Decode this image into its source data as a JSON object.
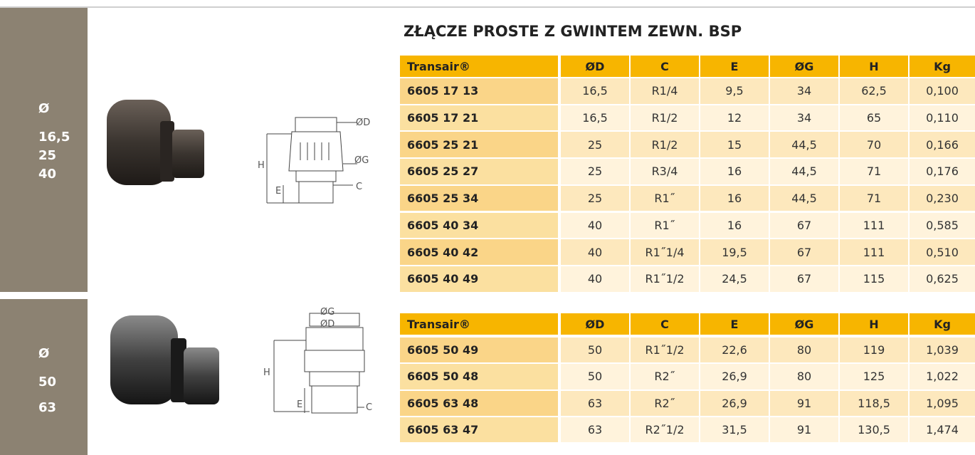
{
  "sidebar": [
    {
      "symbol": "Ø",
      "sizes": [
        "16,5",
        "25",
        "40"
      ]
    },
    {
      "symbol": "Ø",
      "sizes": [
        "50",
        "63"
      ]
    }
  ],
  "title": "ZŁĄCZE PROSTE Z GWINTEM ZEWN. BSP",
  "figures": [
    {
      "od": "ØD",
      "og": "ØG",
      "h": "H",
      "e": "E",
      "c": "C"
    },
    {
      "od": "ØD",
      "og": "ØG",
      "h": "H",
      "e": "E",
      "c": "C"
    }
  ],
  "tables": [
    {
      "header": [
        "Transair®",
        "ØD",
        "C",
        "E",
        "ØG",
        "H",
        "Kg"
      ],
      "rows": [
        [
          "6605 17 13",
          "16,5",
          "R1/4",
          "9,5",
          "34",
          "62,5",
          "0,100"
        ],
        [
          "6605 17 21",
          "16,5",
          "R1/2",
          "12",
          "34",
          "65",
          "0,110"
        ],
        [
          "6605 25 21",
          "25",
          "R1/2",
          "15",
          "44,5",
          "70",
          "0,166"
        ],
        [
          "6605 25 27",
          "25",
          "R3/4",
          "16",
          "44,5",
          "71",
          "0,176"
        ],
        [
          "6605 25 34",
          "25",
          "R1˝",
          "16",
          "44,5",
          "71",
          "0,230"
        ],
        [
          "6605 40 34",
          "40",
          "R1˝",
          "16",
          "67",
          "111",
          "0,585"
        ],
        [
          "6605 40 42",
          "40",
          "R1˝1/4",
          "19,5",
          "67",
          "111",
          "0,510"
        ],
        [
          "6605 40 49",
          "40",
          "R1˝1/2",
          "24,5",
          "67",
          "115",
          "0,625"
        ]
      ]
    },
    {
      "header": [
        "Transair®",
        "ØD",
        "C",
        "E",
        "ØG",
        "H",
        "Kg"
      ],
      "rows": [
        [
          "6605 50 49",
          "50",
          "R1˝1/2",
          "22,6",
          "80",
          "119",
          "1,039"
        ],
        [
          "6605 50 48",
          "50",
          "R2˝",
          "26,9",
          "80",
          "125",
          "1,022"
        ],
        [
          "6605 63 48",
          "63",
          "R2˝",
          "26,9",
          "91",
          "118,5",
          "1,095"
        ],
        [
          "6605 63 47",
          "63",
          "R2˝1/2",
          "31,5",
          "91",
          "130,5",
          "1,474"
        ]
      ]
    }
  ]
}
